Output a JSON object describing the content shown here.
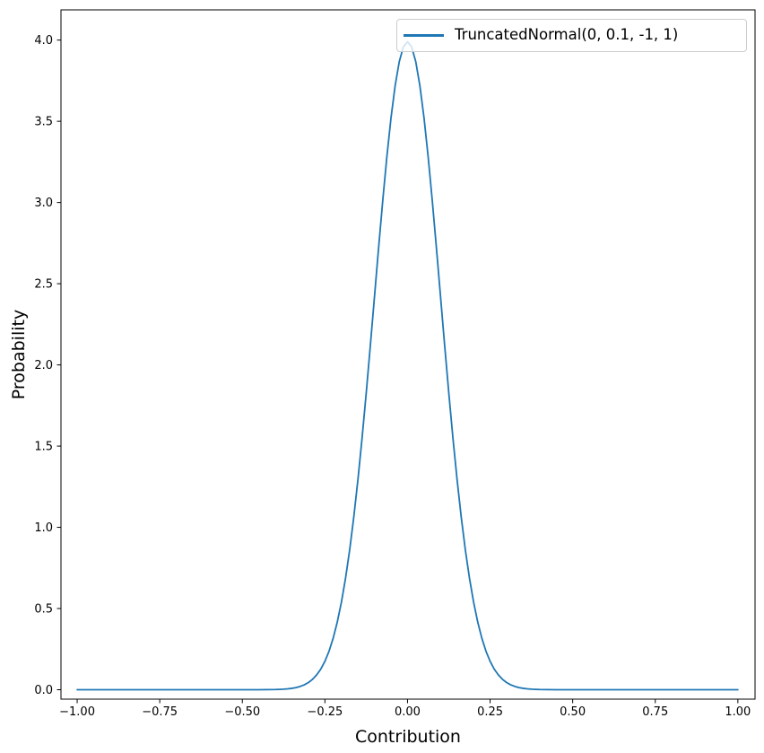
{
  "colors": {
    "line": "#1f77b4",
    "axis": "#000000",
    "text": "#000000",
    "legend_border": "#cccccc",
    "background": "#ffffff"
  },
  "legend": {
    "label": "TruncatedNormal(0, 0.1, -1, 1)",
    "position": "upper right"
  },
  "chart_data": {
    "type": "line",
    "title": "",
    "xlabel": "Contribution",
    "ylabel": "Probability",
    "grid": false,
    "legend_position": "upper right",
    "xlim": [
      -1.049,
      1.052
    ],
    "ylim": [
      -0.058,
      4.186
    ],
    "xticks": [
      -1.0,
      -0.75,
      -0.5,
      -0.25,
      0.0,
      0.25,
      0.5,
      0.75,
      1.0
    ],
    "xtick_labels": [
      "−1.00",
      "−0.75",
      "−0.50",
      "−0.25",
      "0.00",
      "0.25",
      "0.50",
      "0.75",
      "1.00"
    ],
    "yticks": [
      0.0,
      0.5,
      1.0,
      1.5,
      2.0,
      2.5,
      3.0,
      3.5,
      4.0
    ],
    "ytick_labels": [
      "0.0",
      "0.5",
      "1.0",
      "1.5",
      "2.0",
      "2.5",
      "3.0",
      "3.5",
      "4.0"
    ],
    "distribution": {
      "name": "TruncatedNormal",
      "mean": 0,
      "std": 0.1,
      "low": -1,
      "high": 1,
      "peak_density": 3.9894
    },
    "series": [
      {
        "name": "TruncatedNormal(0, 0.1, -1, 1)",
        "color": "#1f77b4",
        "line_width": 1.8,
        "x": [
          -1.0,
          -0.9,
          -0.8,
          -0.7,
          -0.6,
          -0.5,
          -0.45,
          -0.4,
          -0.3875,
          -0.375,
          -0.3625,
          -0.35,
          -0.3375,
          -0.325,
          -0.3125,
          -0.3,
          -0.2875,
          -0.275,
          -0.2625,
          -0.25,
          -0.2375,
          -0.225,
          -0.2125,
          -0.2,
          -0.1875,
          -0.175,
          -0.1625,
          -0.15,
          -0.1375,
          -0.125,
          -0.1125,
          -0.1,
          -0.0875,
          -0.075,
          -0.0625,
          -0.05,
          -0.0375,
          -0.025,
          -0.0125,
          0.0,
          0.0125,
          0.025,
          0.0375,
          0.05,
          0.0625,
          0.075,
          0.0875,
          0.1,
          0.1125,
          0.125,
          0.1375,
          0.15,
          0.1625,
          0.175,
          0.1875,
          0.2,
          0.2125,
          0.225,
          0.2375,
          0.25,
          0.2625,
          0.275,
          0.2875,
          0.3,
          0.3125,
          0.325,
          0.3375,
          0.35,
          0.3625,
          0.375,
          0.3875,
          0.4,
          0.45,
          0.5,
          0.6,
          0.7,
          0.8,
          0.9,
          1.0
        ],
        "y": [
          0.0,
          0.0,
          0.0,
          0.0,
          0.0,
          0.0,
          0.0002,
          0.0013,
          0.0022,
          0.0035,
          0.0056,
          0.0087,
          0.0134,
          0.0203,
          0.0302,
          0.0443,
          0.064,
          0.091,
          0.1271,
          0.1753,
          0.2375,
          0.3174,
          0.4173,
          0.5399,
          0.6878,
          0.8618,
          1.0653,
          1.2952,
          1.5501,
          1.8265,
          2.1188,
          2.4197,
          2.7205,
          3.0107,
          3.2816,
          3.5206,
          3.7185,
          3.8667,
          3.9584,
          3.9894,
          3.9584,
          3.8667,
          3.7185,
          3.5206,
          3.2816,
          3.0107,
          2.7205,
          2.4197,
          2.1188,
          1.8265,
          1.5501,
          1.2952,
          1.0653,
          0.8618,
          0.6878,
          0.5399,
          0.4173,
          0.3174,
          0.2375,
          0.1753,
          0.1271,
          0.091,
          0.064,
          0.0443,
          0.0302,
          0.0203,
          0.0134,
          0.0087,
          0.0056,
          0.0035,
          0.0022,
          0.0013,
          0.0002,
          0.0,
          0.0,
          0.0,
          0.0,
          0.0,
          0.0
        ]
      }
    ]
  }
}
